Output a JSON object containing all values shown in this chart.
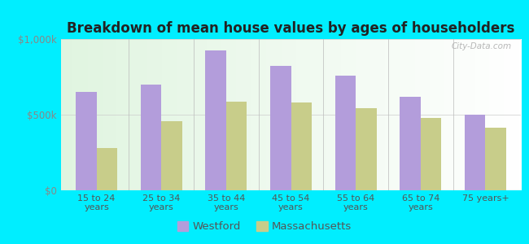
{
  "title": "Breakdown of mean house values by ages of householders",
  "categories": [
    "15 to 24\nyears",
    "25 to 34\nyears",
    "35 to 44\nyears",
    "45 to 54\nyears",
    "55 to 64\nyears",
    "65 to 74\nyears",
    "75 years+"
  ],
  "westford": [
    650000,
    700000,
    925000,
    820000,
    760000,
    620000,
    500000
  ],
  "massachusetts": [
    280000,
    455000,
    585000,
    580000,
    545000,
    480000,
    415000
  ],
  "westford_color": "#b39ddb",
  "massachusetts_color": "#c8cd8a",
  "bg_outer": "#00eeff",
  "ylim": [
    0,
    1000000
  ],
  "ytick_labels": [
    "$0",
    "$500k",
    "$1,000k"
  ],
  "legend_westford": "Westford",
  "legend_massachusetts": "Massachusetts",
  "watermark": "City-Data.com",
  "bar_width": 0.32
}
